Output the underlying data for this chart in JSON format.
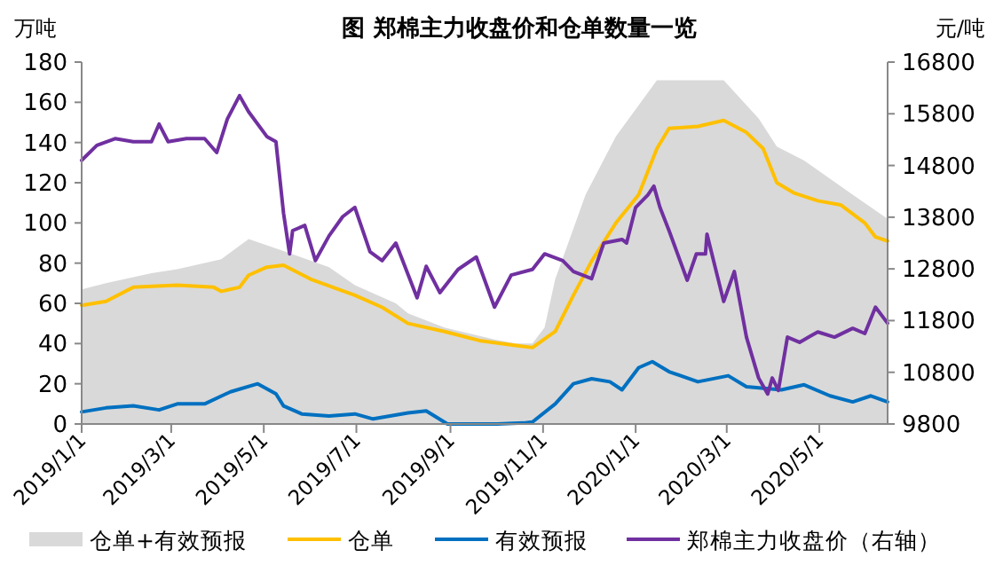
{
  "chart_data": {
    "type": "line",
    "title": "图 郑棉主力收盘价和仓单数量一览",
    "ylabel": "万吨",
    "y2label": "元/吨",
    "xlim": [
      "2019-01-01",
      "2020-06-15"
    ],
    "xticks": [
      {
        "value": "2019-01-01",
        "label": "2019/1/1"
      },
      {
        "value": "2019-03-01",
        "label": "2019/3/1"
      },
      {
        "value": "2019-05-01",
        "label": "2019/5/1"
      },
      {
        "value": "2019-07-01",
        "label": "2019/7/1"
      },
      {
        "value": "2019-09-01",
        "label": "2019/9/1"
      },
      {
        "value": "2019-11-01",
        "label": "2019/11/1"
      },
      {
        "value": "2020-01-01",
        "label": "2020/1/1"
      },
      {
        "value": "2020-03-01",
        "label": "2020/3/1"
      },
      {
        "value": "2020-05-01",
        "label": "2020/5/1"
      }
    ],
    "ylim": [
      0,
      180
    ],
    "yticks": [
      0,
      20,
      40,
      60,
      80,
      100,
      120,
      140,
      160,
      180
    ],
    "y2lim": [
      9800,
      16800
    ],
    "y2ticks": [
      9800,
      10800,
      11800,
      12800,
      13800,
      14800,
      15800,
      16800
    ],
    "grid": false,
    "legend": "bottom",
    "series": [
      {
        "name": "仓单+有效预报",
        "type": "area",
        "color": "#d9d9d9",
        "x": [
          "2019-01-01",
          "2019-01-17",
          "2019-02-16",
          "2019-03-05",
          "2019-04-03",
          "2019-04-21",
          "2019-05-14",
          "2019-06-13",
          "2019-06-30",
          "2019-07-27",
          "2019-08-04",
          "2019-08-28",
          "2019-09-30",
          "2019-10-14",
          "2019-10-25",
          "2019-11-02",
          "2019-11-09",
          "2019-11-29",
          "2019-12-19",
          "2020-01-15",
          "2020-02-28",
          "2020-03-22",
          "2020-04-03",
          "2020-04-21",
          "2020-05-23",
          "2020-06-15"
        ],
        "values": [
          67,
          70,
          75,
          77,
          82,
          92,
          86,
          78,
          69,
          60,
          55,
          48,
          42,
          40,
          40,
          48,
          72,
          114,
          143,
          171,
          171,
          152,
          138,
          131,
          114,
          102
        ]
      },
      {
        "name": "仓单",
        "color": "#ffc000",
        "x": [
          "2019-01-01",
          "2019-01-17",
          "2019-02-04",
          "2019-03-05",
          "2019-03-29",
          "2019-04-03",
          "2019-04-15",
          "2019-04-21",
          "2019-05-03",
          "2019-05-14",
          "2019-06-01",
          "2019-06-30",
          "2019-07-18",
          "2019-08-04",
          "2019-08-28",
          "2019-09-20",
          "2019-10-14",
          "2019-10-25",
          "2019-11-09",
          "2019-11-21",
          "2019-12-03",
          "2019-12-19",
          "2020-01-03",
          "2020-01-15",
          "2020-01-23",
          "2020-02-11",
          "2020-02-28",
          "2020-03-14",
          "2020-03-25",
          "2020-04-03",
          "2020-04-14",
          "2020-04-30",
          "2020-05-15",
          "2020-05-31",
          "2020-06-07",
          "2020-06-15"
        ],
        "values": [
          59,
          61,
          68,
          69,
          68,
          66,
          68,
          74,
          78,
          79,
          72,
          64,
          58,
          50,
          46,
          41.5,
          39,
          38,
          46,
          64,
          81,
          100,
          114,
          137,
          147,
          148,
          151,
          145,
          137,
          120,
          115,
          111,
          109,
          100,
          93,
          91
        ]
      },
      {
        "name": "有效预报",
        "color": "#0070c0",
        "x": [
          "2019-01-01",
          "2019-01-17",
          "2019-02-04",
          "2019-02-21",
          "2019-03-05",
          "2019-03-23",
          "2019-04-09",
          "2019-04-27",
          "2019-05-09",
          "2019-05-14",
          "2019-05-26",
          "2019-06-13",
          "2019-06-30",
          "2019-07-12",
          "2019-08-04",
          "2019-08-16",
          "2019-08-30",
          "2019-10-02",
          "2019-10-19",
          "2019-10-25",
          "2019-11-09",
          "2019-11-21",
          "2019-12-03",
          "2019-12-15",
          "2019-12-23",
          "2020-01-03",
          "2020-01-12",
          "2020-01-23",
          "2020-02-11",
          "2020-03-02",
          "2020-03-14",
          "2020-04-06",
          "2020-04-21",
          "2020-05-08",
          "2020-05-23",
          "2020-06-04",
          "2020-06-15"
        ],
        "values": [
          6,
          8,
          9,
          7,
          10,
          10,
          16,
          20,
          15,
          9,
          5,
          4,
          5,
          2.5,
          5.5,
          6.5,
          0,
          0,
          0.5,
          1,
          10,
          20,
          22.5,
          21,
          17,
          28,
          31,
          26,
          21,
          24,
          18.5,
          17,
          19.5,
          14,
          11,
          14,
          11
        ]
      },
      {
        "name": "郑棉主力收盘价（右轴）",
        "color": "#7030a0",
        "axis": "y2",
        "x": [
          "2019-01-01",
          "2019-01-11",
          "2019-01-23",
          "2019-02-04",
          "2019-02-16",
          "2019-02-21",
          "2019-02-27",
          "2019-03-11",
          "2019-03-23",
          "2019-03-31",
          "2019-04-07",
          "2019-04-15",
          "2019-04-21",
          "2019-05-03",
          "2019-05-09",
          "2019-05-14",
          "2019-05-18",
          "2019-05-20",
          "2019-05-28",
          "2019-06-04",
          "2019-06-13",
          "2019-06-22",
          "2019-06-30",
          "2019-07-10",
          "2019-07-18",
          "2019-07-27",
          "2019-08-10",
          "2019-08-16",
          "2019-08-25",
          "2019-09-06",
          "2019-09-18",
          "2019-09-30",
          "2019-10-11",
          "2019-10-25",
          "2019-11-02",
          "2019-11-14",
          "2019-11-21",
          "2019-12-03",
          "2019-12-11",
          "2019-12-23",
          "2019-12-26",
          "2020-01-01",
          "2020-01-09",
          "2020-01-13",
          "2020-01-17",
          "2020-01-23",
          "2020-02-04",
          "2020-02-10",
          "2020-02-16",
          "2020-02-17",
          "2020-02-28",
          "2020-03-06",
          "2020-03-14",
          "2020-03-22",
          "2020-03-28",
          "2020-03-31",
          "2020-04-04",
          "2020-04-10",
          "2020-04-18",
          "2020-04-24",
          "2020-04-30",
          "2020-05-11",
          "2020-05-23",
          "2020-05-31",
          "2020-06-07",
          "2020-06-15"
        ],
        "values": [
          14900,
          15190,
          15320,
          15260,
          15260,
          15600,
          15260,
          15320,
          15320,
          15050,
          15700,
          16150,
          15840,
          15360,
          15260,
          13880,
          13090,
          13540,
          13640,
          12960,
          13440,
          13810,
          13990,
          13130,
          12960,
          13300,
          12240,
          12850,
          12340,
          12790,
          13030,
          12060,
          12680,
          12790,
          13090,
          12960,
          12750,
          12610,
          13300,
          13370,
          13300,
          13990,
          14230,
          14400,
          13990,
          13540,
          12580,
          13090,
          13090,
          13470,
          12170,
          12750,
          11480,
          10690,
          10380,
          10690,
          10450,
          11480,
          11380,
          11480,
          11580,
          11480,
          11650,
          11550,
          12060,
          11750
        ]
      }
    ]
  }
}
